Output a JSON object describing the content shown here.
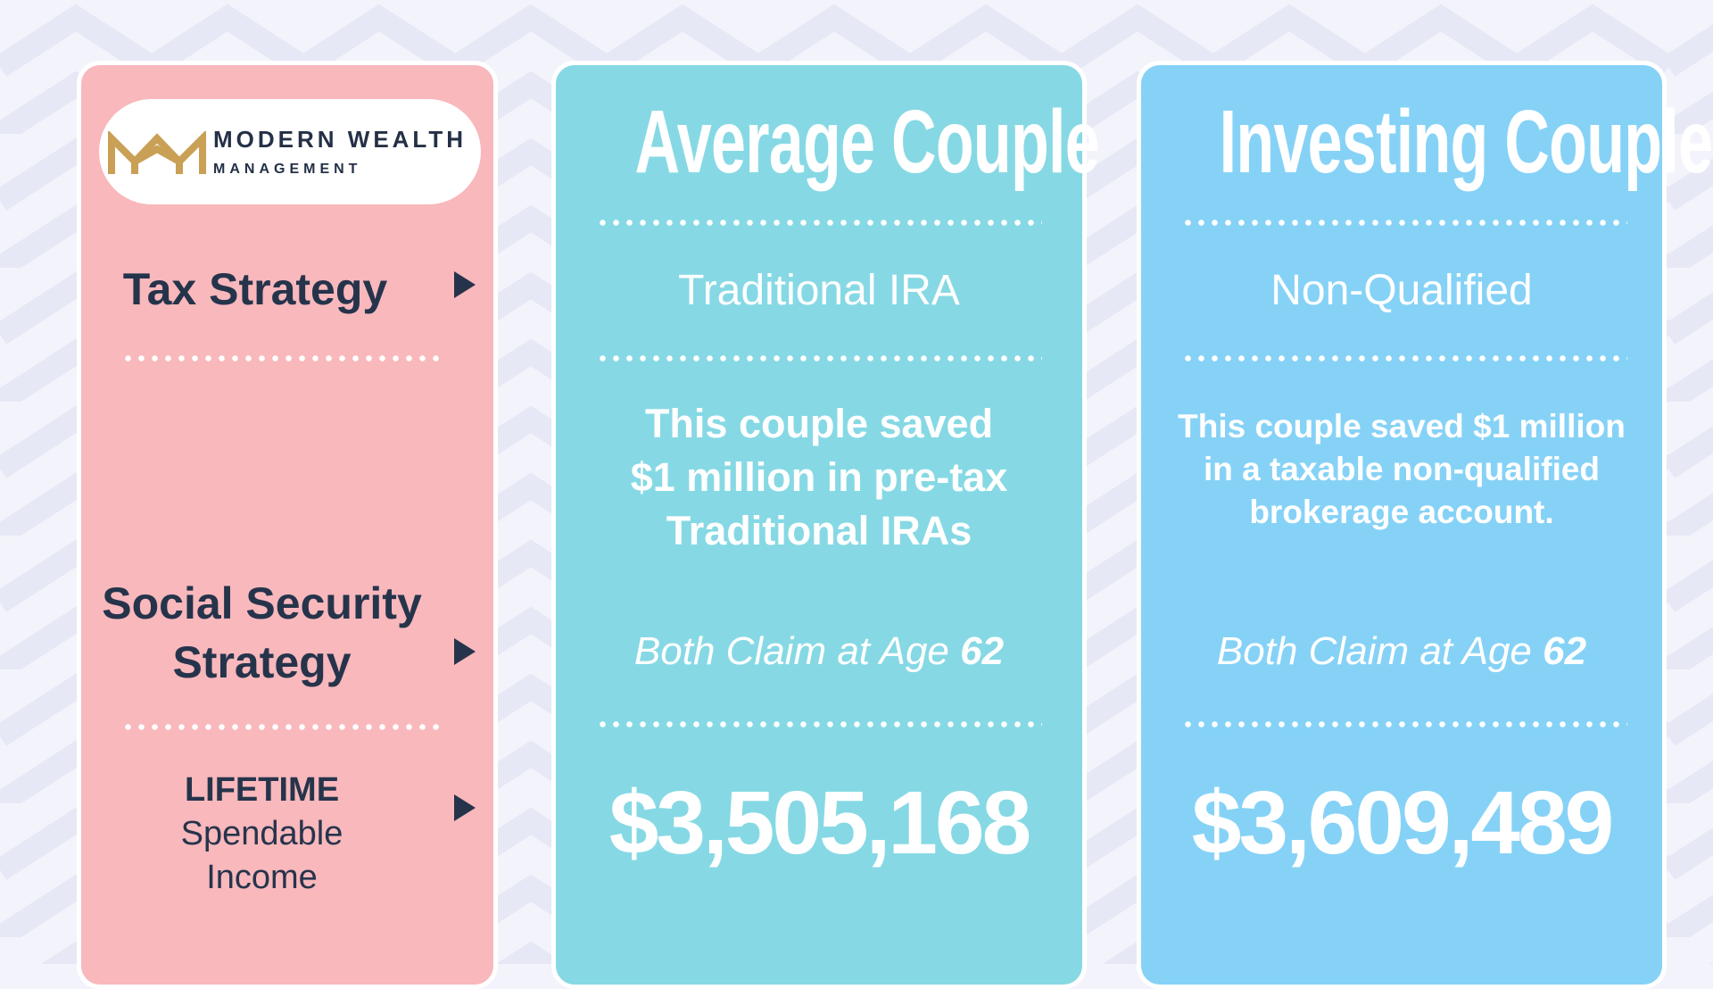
{
  "brand": {
    "name": "MODERN WEALTH",
    "sub": "MANAGEMENT",
    "logo_icon": "mw-monogram-icon",
    "logo_color": "#c9a055"
  },
  "colors": {
    "left_panel": "#f8b8bc",
    "middle_panel": "#86d9e4",
    "right_panel": "#86d2f7",
    "label_text": "#26344b"
  },
  "rows": {
    "tax_strategy": "Tax Strategy",
    "ss_line1": "Social Security",
    "ss_line2": "Strategy",
    "lifetime": "LIFETIME",
    "spendable": "Spendable",
    "income": "Income"
  },
  "columns": [
    {
      "title": "Average Couple",
      "strategy": "Traditional IRA",
      "desc_lines": [
        "This couple saved",
        "$1 million in pre-tax",
        "Traditional IRAs"
      ],
      "claim_prefix": "Both Claim at Age ",
      "claim_age": "62",
      "amount": "$3,505,168"
    },
    {
      "title": "Investing Couple",
      "strategy": "Non-Qualified",
      "desc_lines": [
        "This couple saved $1 million",
        "in a taxable non-qualified",
        "brokerage account."
      ],
      "claim_prefix": "Both Claim at Age ",
      "claim_age": "62",
      "amount": "$3,609,489"
    }
  ]
}
